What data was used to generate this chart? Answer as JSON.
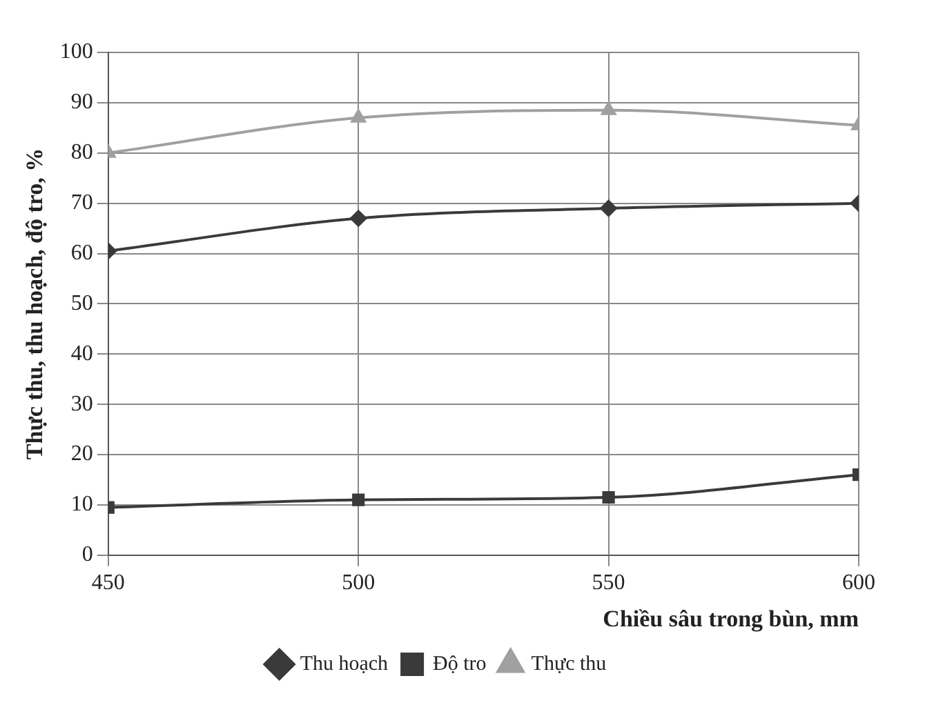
{
  "chart_data": {
    "type": "line",
    "xlabel": "Chiều sâu trong bùn, mm",
    "ylabel": "Thực thu, thu hoạch, độ tro, %",
    "x": [
      450,
      500,
      550,
      600
    ],
    "series": [
      {
        "name": "Thu hoạch",
        "color": "#3a3a3a",
        "marker": "diamond",
        "values": [
          60.5,
          67,
          69,
          70
        ]
      },
      {
        "name": "Độ tro",
        "color": "#3a3a3a",
        "marker": "square",
        "values": [
          9.5,
          11,
          11.5,
          16
        ]
      },
      {
        "name": "Thực thu",
        "color": "#a0a0a0",
        "marker": "triangle",
        "values": [
          80,
          87,
          88.5,
          85.5
        ]
      }
    ],
    "xlim": [
      450,
      600
    ],
    "xticks": [
      450,
      500,
      550,
      600
    ],
    "ylim": [
      0,
      100
    ],
    "yticks": [
      0,
      10,
      20,
      30,
      40,
      50,
      60,
      70,
      80,
      90,
      100
    ],
    "grid": true,
    "legend": "bottom",
    "line_style": "solid"
  }
}
